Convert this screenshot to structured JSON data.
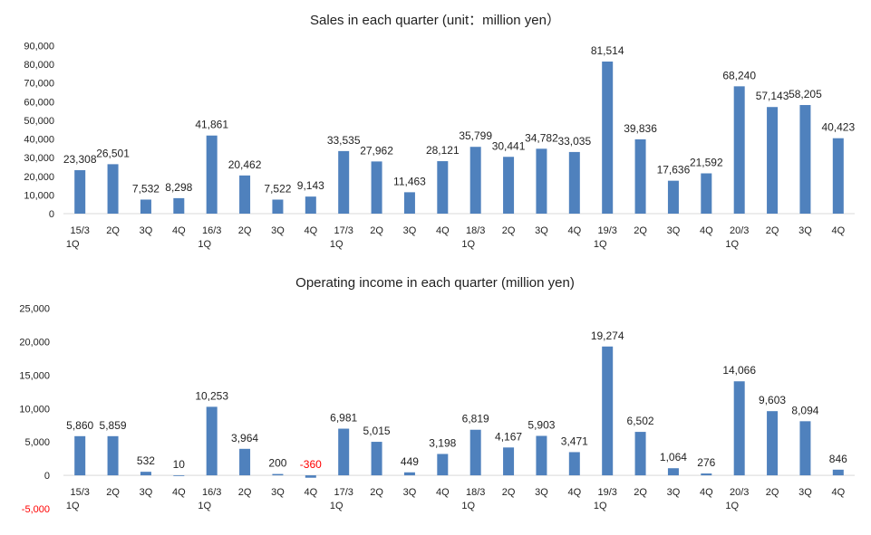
{
  "chart_data": [
    {
      "type": "bar",
      "title": "Sales in each quarter (unit：million yen）",
      "categories": [
        "15/3\n1Q",
        "2Q",
        "3Q",
        "4Q",
        "16/3\n1Q",
        "2Q",
        "3Q",
        "4Q",
        "17/3\n1Q",
        "2Q",
        "3Q",
        "4Q",
        "18/3\n1Q",
        "2Q",
        "3Q",
        "4Q",
        "19/3\n1Q",
        "2Q",
        "3Q",
        "4Q",
        "20/3\n1Q",
        "2Q",
        "3Q",
        "4Q"
      ],
      "values": [
        23308,
        26501,
        7532,
        8298,
        41861,
        20462,
        7522,
        9143,
        33535,
        27962,
        11463,
        28121,
        35799,
        30441,
        34782,
        33035,
        81514,
        39836,
        17636,
        21592,
        68240,
        57143,
        58205,
        40423
      ],
      "labels": [
        "23,308",
        "26,501",
        "7,532",
        "8,298",
        "41,861",
        "20,462",
        "7,522",
        "9,143",
        "33,535",
        "27,962",
        "11,463",
        "28,121",
        "35,799",
        "30,441",
        "34,782",
        "33,035",
        "81,514",
        "39,836",
        "17,636",
        "21,592",
        "68,240",
        "57,143",
        "58,205",
        "40,423"
      ],
      "yticks": [
        "0",
        "10,000",
        "20,000",
        "30,000",
        "40,000",
        "50,000",
        "60,000",
        "70,000",
        "80,000",
        "90,000"
      ],
      "ylim": [
        0,
        90000
      ],
      "grid": false,
      "bar_color": "#4f81bd"
    },
    {
      "type": "bar",
      "title": "Operating income in each quarter (million yen)",
      "categories": [
        "15/3\n1Q",
        "2Q",
        "3Q",
        "4Q",
        "16/3\n1Q",
        "2Q",
        "3Q",
        "4Q",
        "17/3\n1Q",
        "2Q",
        "3Q",
        "4Q",
        "18/3\n1Q",
        "2Q",
        "3Q",
        "4Q",
        "19/3\n1Q",
        "2Q",
        "3Q",
        "4Q",
        "20/3\n1Q",
        "2Q",
        "3Q",
        "4Q"
      ],
      "values": [
        5860,
        5859,
        532,
        10,
        10253,
        3964,
        200,
        -360,
        6981,
        5015,
        449,
        3198,
        6819,
        4167,
        5903,
        3471,
        19274,
        6502,
        1064,
        276,
        14066,
        9603,
        8094,
        846
      ],
      "labels": [
        "5,860",
        "5,859",
        "532",
        "10",
        "10,253",
        "3,964",
        "200",
        "-360",
        "6,981",
        "5,015",
        "449",
        "3,198",
        "6,819",
        "4,167",
        "5,903",
        "3,471",
        "19,274",
        "6,502",
        "1,064",
        "276",
        "14,066",
        "9,603",
        "8,094",
        "846"
      ],
      "yticks": [
        "-5,000",
        "0",
        "5,000",
        "10,000",
        "15,000",
        "20,000",
        "25,000"
      ],
      "ylim": [
        -5000,
        25000
      ],
      "grid": false,
      "bar_color": "#4f81bd",
      "negative_label_color": "#ff0000"
    }
  ]
}
